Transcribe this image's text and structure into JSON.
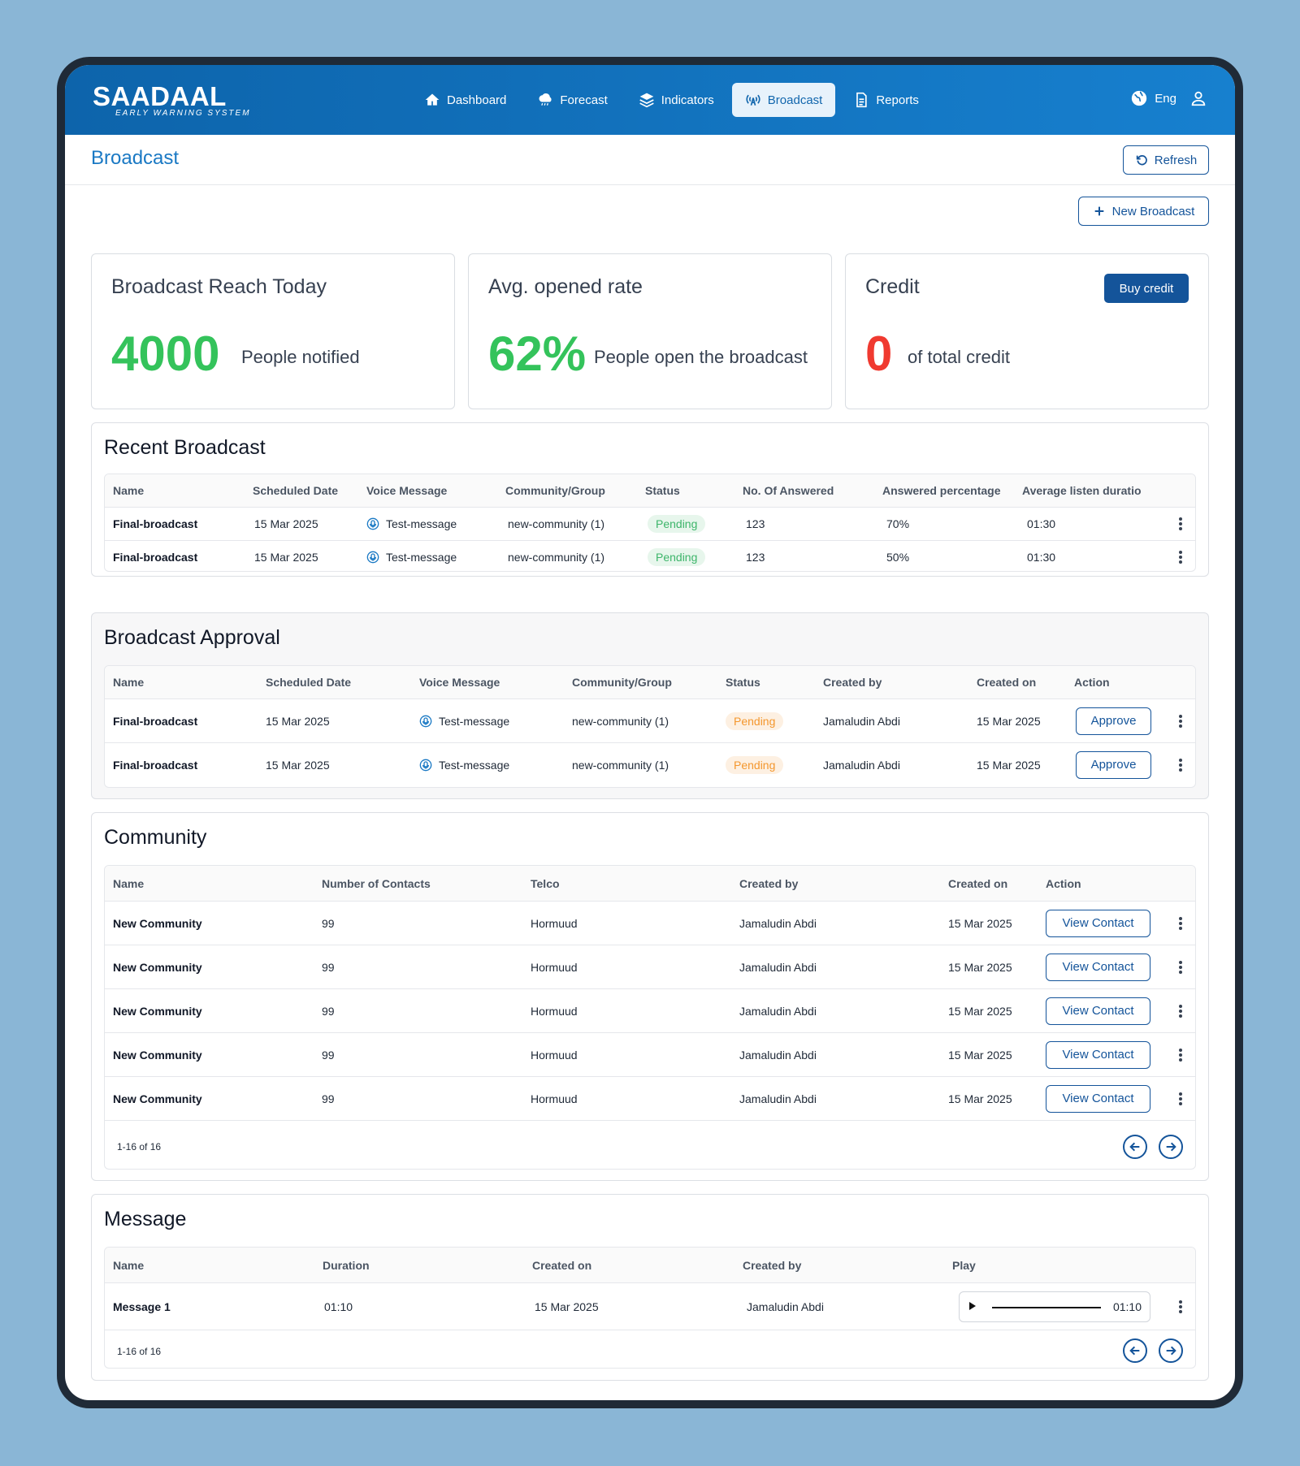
{
  "app": {
    "logo_main": "SAADAAL",
    "logo_sub": "EARLY WARNING SYSTEM",
    "nav": [
      {
        "label": "Dashboard",
        "icon": "home-icon"
      },
      {
        "label": "Forecast",
        "icon": "cloud-rain-icon"
      },
      {
        "label": "Indicators",
        "icon": "layers-icon"
      },
      {
        "label": "Broadcast",
        "icon": "broadcast-icon",
        "active": true
      },
      {
        "label": "Reports",
        "icon": "document-icon"
      }
    ],
    "language": "Eng"
  },
  "page": {
    "title": "Broadcast",
    "refresh_label": "Refresh",
    "new_broadcast_label": "New Broadcast"
  },
  "stats": {
    "reach": {
      "title": "Broadcast Reach Today",
      "value": "4000",
      "desc": "People notified"
    },
    "opened": {
      "title": "Avg. opened rate",
      "value": "62%",
      "desc": "People open the broadcast"
    },
    "credit": {
      "title": "Credit",
      "value": "0",
      "desc": "of total credit",
      "buy_label": "Buy credit"
    }
  },
  "recent": {
    "title": "Recent Broadcast",
    "headers": [
      "Name",
      "Scheduled Date",
      "Voice Message",
      "Community/Group",
      "Status",
      "No. Of Answered",
      "Answered percentage",
      "Average listen duratio"
    ],
    "rows": [
      {
        "name": "Final-broadcast",
        "date": "15 Mar 2025",
        "voice": "Test-message",
        "community": "new-community (1)",
        "status": "Pending",
        "answered": "123",
        "percent": "70%",
        "duration": "01:30"
      },
      {
        "name": "Final-broadcast",
        "date": "15 Mar 2025",
        "voice": "Test-message",
        "community": "new-community (1)",
        "status": "Pending",
        "answered": "123",
        "percent": "50%",
        "duration": "01:30"
      }
    ]
  },
  "approval": {
    "title": "Broadcast Approval",
    "headers": [
      "Name",
      "Scheduled Date",
      "Voice Message",
      "Community/Group",
      "Status",
      "Created by",
      "Created on",
      "Action"
    ],
    "rows": [
      {
        "name": "Final-broadcast",
        "date": "15 Mar 2025",
        "voice": "Test-message",
        "community": "new-community (1)",
        "status": "Pending",
        "created_by": "Jamaludin Abdi",
        "created_on": "15 Mar 2025",
        "action": "Approve"
      },
      {
        "name": "Final-broadcast",
        "date": "15 Mar 2025",
        "voice": "Test-message",
        "community": "new-community (1)",
        "status": "Pending",
        "created_by": "Jamaludin Abdi",
        "created_on": "15 Mar 2025",
        "action": "Approve"
      }
    ]
  },
  "community": {
    "title": "Community",
    "headers": [
      "Name",
      "Number of Contacts",
      "Telco",
      "Created by",
      "Created on",
      "Action"
    ],
    "rows": [
      {
        "name": "New Community",
        "contacts": "99",
        "telco": "Hormuud",
        "created_by": "Jamaludin Abdi",
        "created_on": "15 Mar 2025",
        "action": "View Contact"
      },
      {
        "name": "New Community",
        "contacts": "99",
        "telco": "Hormuud",
        "created_by": "Jamaludin Abdi",
        "created_on": "15 Mar 2025",
        "action": "View Contact"
      },
      {
        "name": "New Community",
        "contacts": "99",
        "telco": "Hormuud",
        "created_by": "Jamaludin Abdi",
        "created_on": "15 Mar 2025",
        "action": "View Contact"
      },
      {
        "name": "New Community",
        "contacts": "99",
        "telco": "Hormuud",
        "created_by": "Jamaludin Abdi",
        "created_on": "15 Mar 2025",
        "action": "View Contact"
      },
      {
        "name": "New Community",
        "contacts": "99",
        "telco": "Hormuud",
        "created_by": "Jamaludin Abdi",
        "created_on": "15 Mar 2025",
        "action": "View Contact"
      }
    ],
    "pagination": "1-16 of 16"
  },
  "message": {
    "title": "Message",
    "headers": [
      "Name",
      "Duration",
      "Created on",
      "Created by",
      "Play"
    ],
    "rows": [
      {
        "name": "Message 1",
        "duration": "01:10",
        "created_on": "15 Mar 2025",
        "created_by": "Jamaludin Abdi",
        "player_time": "01:10"
      }
    ],
    "pagination": "1-16 of 16"
  },
  "colors": {
    "primary": "#14549a",
    "accent": "#1a79c4",
    "success": "#34c35b",
    "danger": "#f03a30",
    "pending_green": "#3db56a",
    "pending_orange": "#f4972e"
  }
}
